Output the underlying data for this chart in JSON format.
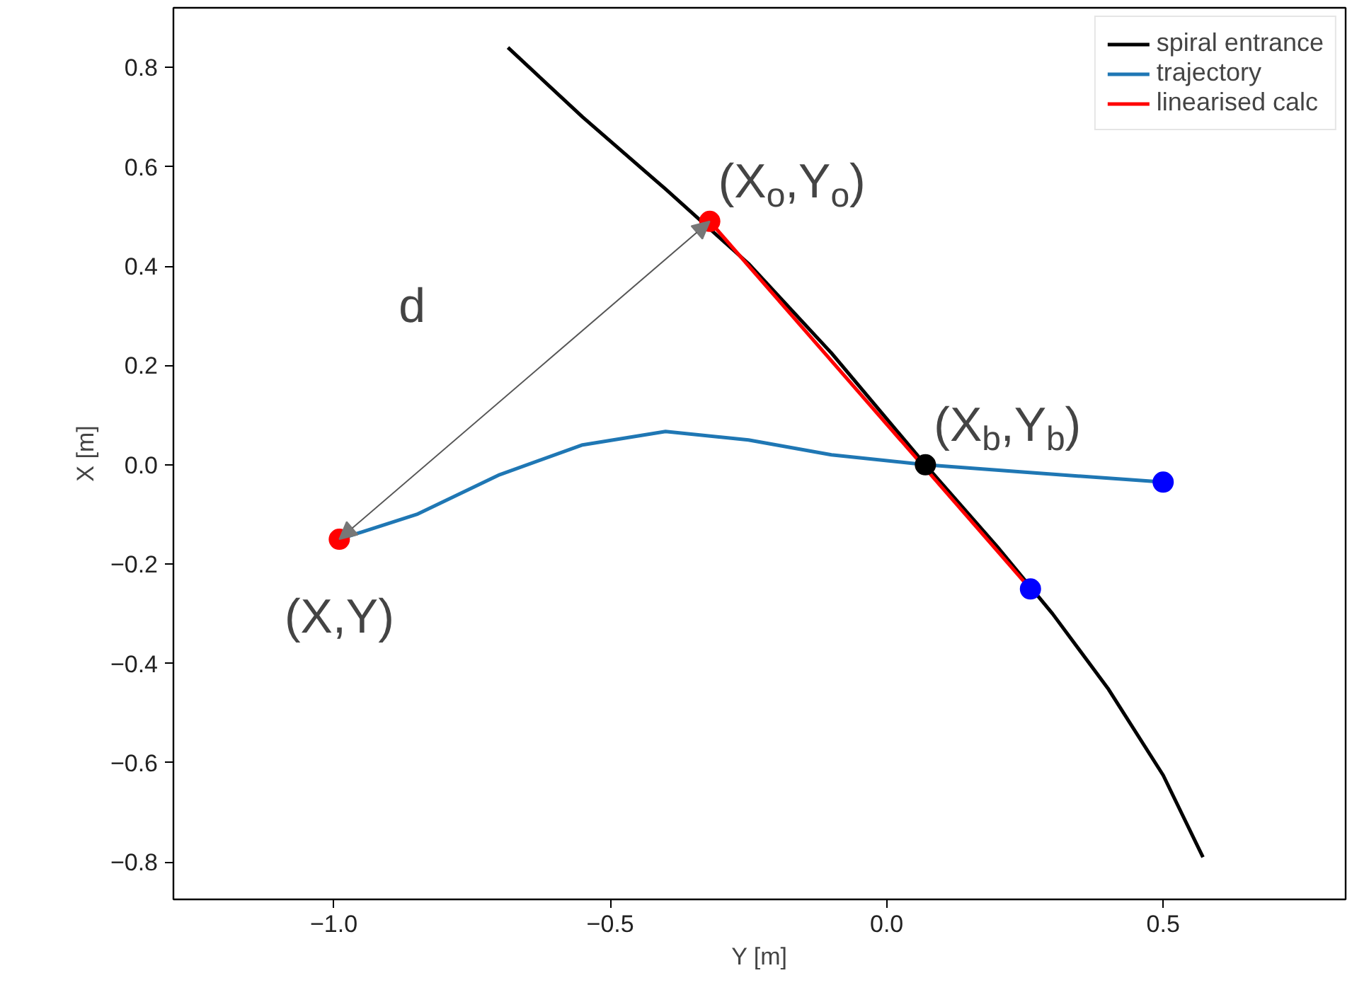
{
  "chart_data": {
    "type": "line",
    "xlabel": "Y [m]",
    "ylabel": "X [m]",
    "xlim": [
      -1.29,
      0.83
    ],
    "ylim": [
      -0.875,
      0.92
    ],
    "xticks": [
      {
        "value": -1.0,
        "label": "−1.0"
      },
      {
        "value": -0.5,
        "label": "−0.5"
      },
      {
        "value": 0,
        "label": "0.0"
      },
      0.5
    ],
    "yticks": [
      {
        "value": -0.8,
        "label": "−0.8"
      },
      {
        "value": -0.6,
        "label": "−0.6"
      },
      {
        "value": -0.4,
        "label": "−0.4"
      },
      {
        "value": -0.2,
        "label": "−0.2"
      },
      {
        "value": 0,
        "label": "0.0"
      },
      0.2,
      0.4,
      0.6,
      0.8
    ],
    "grid": false,
    "legend": "top right",
    "marker": "none",
    "line_style": "solid",
    "series": [
      {
        "name": "spiral entrance",
        "color": "#000000",
        "x": [
          -0.685,
          -0.55,
          -0.4,
          -0.25,
          -0.1,
          0.07,
          0.2,
          0.3,
          0.4,
          0.5,
          0.572
        ],
        "values": [
          0.84,
          0.7,
          0.555,
          0.405,
          0.225,
          0.0,
          -0.165,
          -0.3,
          -0.45,
          -0.625,
          -0.79
        ]
      },
      {
        "name": "trajectory",
        "color": "#1f77b4",
        "x": [
          -0.99,
          -0.85,
          -0.7,
          -0.55,
          -0.4,
          -0.25,
          -0.1,
          0.07,
          0.25,
          0.5
        ],
        "values": [
          -0.15,
          -0.1,
          -0.02,
          0.04,
          0.067,
          0.05,
          0.02,
          0.0,
          -0.015,
          -0.035
        ]
      },
      {
        "name": "linearised calc",
        "color": "#ff0000",
        "x": [
          -0.32,
          0.26
        ],
        "values": [
          0.49,
          -0.25
        ]
      },
      {
        "type": "scatter",
        "marker": "circle",
        "color": "#ff0000",
        "x": [
          -0.99,
          -0.32
        ],
        "values": [
          -0.15,
          0.49
        ]
      },
      {
        "type": "scatter",
        "marker": "circle",
        "color": "#000000",
        "x": [
          0.07
        ],
        "values": [
          0.0
        ]
      },
      {
        "type": "scatter",
        "marker": "circle",
        "color": "#0000ff",
        "x": [
          0.26,
          0.5
        ],
        "values": [
          -0.25,
          -0.035
        ]
      }
    ],
    "annotations": [
      "(X,Y)",
      "(X$_{o}$,Y$_{o}$)",
      "(X$_{b}$,Y$_{b}$)",
      "d"
    ]
  }
}
